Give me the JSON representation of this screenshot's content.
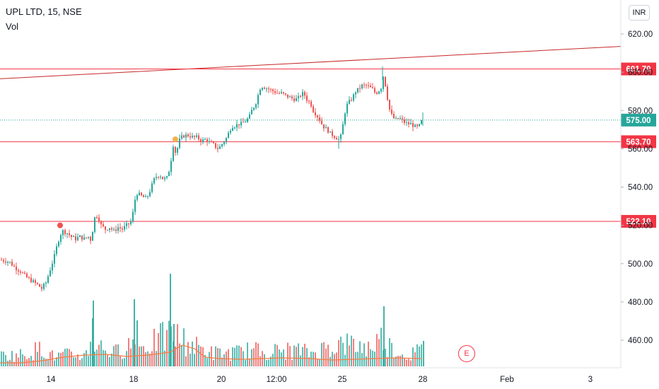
{
  "header": {
    "symbol": "UPL LTD, 15, NSE",
    "volume_label": "Vol",
    "currency": "INR"
  },
  "earnings_marker": "E",
  "colors": {
    "up": "#26a69a",
    "down": "#ef5350",
    "level": "#f23645",
    "trend": "#c62828",
    "vol_ma": "#f57c43",
    "current": "#26a69a"
  },
  "chart_data": {
    "type": "candlestick",
    "title": "UPL LTD, 15, NSE",
    "ylim": [
      446,
      628
    ],
    "y_ticks": [
      460,
      480,
      500,
      520,
      540,
      560,
      580,
      600,
      620
    ],
    "y_tick_labels": [
      "460.00",
      "480.00",
      "500.00",
      "520.00",
      "540.00",
      "560.00",
      "580.00",
      "600.00",
      "620.00"
    ],
    "x_tick_labels": [
      "14",
      "18",
      "20",
      "12:00",
      "25",
      "28",
      "Feb",
      "3"
    ],
    "price_levels": [
      {
        "label": "601.70",
        "value": 601.7
      },
      {
        "label": "563.70",
        "value": 563.7
      },
      {
        "label": "522.10",
        "value": 522.1
      }
    ],
    "current_price": {
      "label": "575.00",
      "value": 575.0
    },
    "trendline": {
      "start": 596.6,
      "end": 613.5
    },
    "signals": [
      {
        "type": "sell",
        "value": 520
      },
      {
        "type": "buy",
        "value": 565
      }
    ],
    "path_anchors": [
      [
        0,
        502
      ],
      [
        12,
        501
      ],
      [
        20,
        498
      ],
      [
        28,
        496
      ],
      [
        36,
        493
      ],
      [
        44,
        491
      ],
      [
        52,
        489
      ],
      [
        58,
        487
      ],
      [
        64,
        490
      ],
      [
        70,
        497
      ],
      [
        76,
        504
      ],
      [
        80,
        510
      ],
      [
        84,
        515
      ],
      [
        88,
        517
      ],
      [
        94,
        516
      ],
      [
        100,
        514
      ],
      [
        106,
        513
      ],
      [
        112,
        514
      ],
      [
        118,
        513
      ],
      [
        124,
        514
      ],
      [
        128,
        512
      ],
      [
        131,
        520
      ],
      [
        134,
        526
      ],
      [
        138,
        524
      ],
      [
        142,
        520
      ],
      [
        148,
        518
      ],
      [
        154,
        519
      ],
      [
        160,
        517
      ],
      [
        166,
        519
      ],
      [
        172,
        518
      ],
      [
        178,
        520
      ],
      [
        182,
        521
      ],
      [
        186,
        523
      ],
      [
        188,
        530
      ],
      [
        192,
        537
      ],
      [
        196,
        536
      ],
      [
        200,
        535
      ],
      [
        206,
        534
      ],
      [
        210,
        537
      ],
      [
        214,
        541
      ],
      [
        218,
        545
      ],
      [
        222,
        546
      ],
      [
        226,
        546
      ],
      [
        230,
        544
      ],
      [
        236,
        545
      ],
      [
        240,
        552
      ],
      [
        244,
        562
      ],
      [
        248,
        557
      ],
      [
        252,
        564
      ],
      [
        256,
        566
      ],
      [
        260,
        567
      ],
      [
        266,
        567
      ],
      [
        272,
        566
      ],
      [
        278,
        566
      ],
      [
        284,
        564
      ],
      [
        290,
        565
      ],
      [
        296,
        563
      ],
      [
        302,
        562
      ],
      [
        306,
        560
      ],
      [
        310,
        561
      ],
      [
        316,
        564
      ],
      [
        320,
        566
      ],
      [
        324,
        570
      ],
      [
        328,
        572
      ],
      [
        332,
        572
      ],
      [
        336,
        573
      ],
      [
        340,
        573
      ],
      [
        344,
        574
      ],
      [
        348,
        575
      ],
      [
        352,
        577
      ],
      [
        356,
        581
      ],
      [
        360,
        583
      ],
      [
        364,
        588
      ],
      [
        368,
        593
      ],
      [
        374,
        592
      ],
      [
        380,
        591
      ],
      [
        386,
        590
      ],
      [
        392,
        589
      ],
      [
        398,
        589
      ],
      [
        402,
        588
      ],
      [
        408,
        587
      ],
      [
        414,
        586
      ],
      [
        420,
        586
      ],
      [
        426,
        589
      ],
      [
        430,
        588
      ],
      [
        434,
        585
      ],
      [
        438,
        584
      ],
      [
        442,
        580
      ],
      [
        446,
        578
      ],
      [
        450,
        576
      ],
      [
        454,
        573
      ],
      [
        458,
        571
      ],
      [
        462,
        570
      ],
      [
        466,
        568
      ],
      [
        470,
        567
      ],
      [
        474,
        566
      ],
      [
        478,
        565
      ],
      [
        482,
        567
      ],
      [
        486,
        578
      ],
      [
        490,
        583
      ],
      [
        494,
        585
      ],
      [
        498,
        587
      ],
      [
        502,
        590
      ],
      [
        506,
        591
      ],
      [
        510,
        593
      ],
      [
        514,
        593
      ],
      [
        518,
        593
      ],
      [
        522,
        592
      ],
      [
        526,
        591
      ],
      [
        530,
        589
      ],
      [
        534,
        590
      ],
      [
        538,
        592
      ],
      [
        541,
        598
      ],
      [
        543,
        595
      ],
      [
        546,
        590
      ],
      [
        548,
        583
      ],
      [
        552,
        578
      ],
      [
        558,
        575
      ],
      [
        564,
        576
      ],
      [
        570,
        574
      ],
      [
        576,
        573
      ],
      [
        580,
        573
      ],
      [
        584,
        572
      ],
      [
        588,
        571
      ],
      [
        592,
        572
      ],
      [
        596,
        575
      ]
    ],
    "volume_profile": [
      [
        0,
        20
      ],
      [
        30,
        22
      ],
      [
        60,
        34
      ],
      [
        75,
        18
      ],
      [
        90,
        22
      ],
      [
        120,
        20
      ],
      [
        128,
        50
      ],
      [
        140,
        38
      ],
      [
        160,
        25
      ],
      [
        180,
        40
      ],
      [
        186,
        45
      ],
      [
        200,
        35
      ],
      [
        240,
        60
      ],
      [
        250,
        55
      ],
      [
        270,
        40
      ],
      [
        300,
        25
      ],
      [
        330,
        25
      ],
      [
        350,
        30
      ],
      [
        380,
        28
      ],
      [
        420,
        30
      ],
      [
        440,
        25
      ],
      [
        470,
        40
      ],
      [
        490,
        42
      ],
      [
        520,
        35
      ],
      [
        541,
        55
      ],
      [
        548,
        40
      ],
      [
        570,
        20
      ],
      [
        596,
        30
      ]
    ],
    "volume_ma": [
      [
        0,
        5
      ],
      [
        30,
        5
      ],
      [
        60,
        8
      ],
      [
        90,
        13
      ],
      [
        120,
        16
      ],
      [
        150,
        17
      ],
      [
        180,
        14
      ],
      [
        210,
        16
      ],
      [
        240,
        20
      ],
      [
        258,
        30
      ],
      [
        275,
        25
      ],
      [
        290,
        13
      ],
      [
        310,
        11
      ],
      [
        340,
        10
      ],
      [
        370,
        11
      ],
      [
        400,
        12
      ],
      [
        440,
        11
      ],
      [
        470,
        9
      ],
      [
        500,
        10
      ],
      [
        530,
        11
      ],
      [
        560,
        12
      ],
      [
        596,
        11
      ]
    ]
  }
}
